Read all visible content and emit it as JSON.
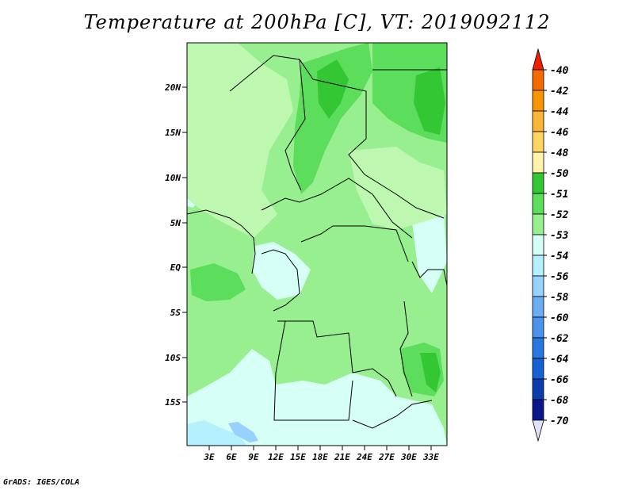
{
  "title": "Temperature at 200hPa [C], VT: 2019092112",
  "credit": "GrADS: IGES/COLA",
  "map": {
    "lat_labels": [
      "20N",
      "15N",
      "10N",
      "5N",
      "EQ",
      "5S",
      "10S",
      "15S"
    ],
    "lon_labels": [
      "3E",
      "6E",
      "9E",
      "12E",
      "15E",
      "18E",
      "21E",
      "24E",
      "27E",
      "30E",
      "33E"
    ]
  },
  "colorbar": {
    "labels": [
      "-40",
      "-42",
      "-44",
      "-46",
      "-48",
      "-50",
      "-51",
      "-52",
      "-53",
      "-54",
      "-56",
      "-58",
      "-60",
      "-62",
      "-64",
      "-66",
      "-68",
      "-70"
    ],
    "colors": [
      "#f02000",
      "#f46a00",
      "#f89400",
      "#fab437",
      "#fdd560",
      "#fff4aa",
      "#34c734",
      "#5cdd5c",
      "#97ef8f",
      "#d6fff6",
      "#b4f0fe",
      "#96d2fb",
      "#6aadf2",
      "#4a92ec",
      "#2878e0",
      "#1561d5",
      "#0a3cae",
      "#0a168c",
      "#e1e1fa"
    ]
  }
}
